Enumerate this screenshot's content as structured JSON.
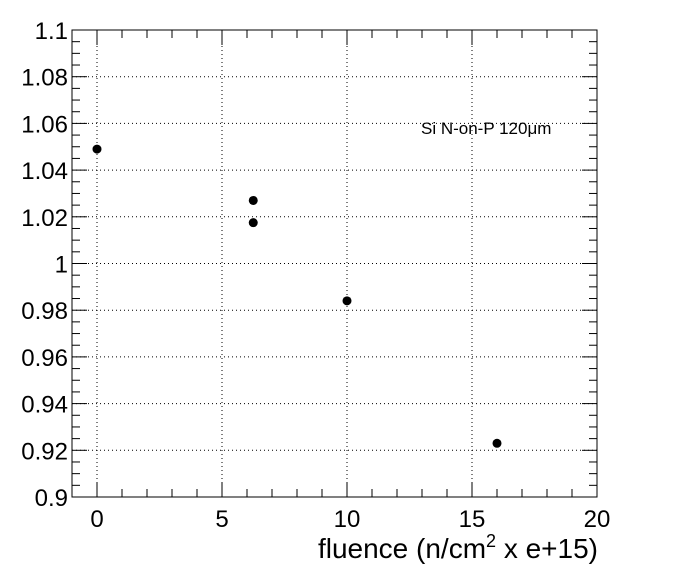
{
  "chart_data": {
    "type": "scatter",
    "title": "",
    "xlabel_main": "fluence (n/cm",
    "xlabel_sup": "2",
    "xlabel_rest": " x e+15)",
    "ylabel": "",
    "xlim": [
      -1,
      20
    ],
    "ylim": [
      0.9,
      1.1
    ],
    "grid": true,
    "x_ticks": [
      0,
      5,
      10,
      15,
      20
    ],
    "y_ticks": [
      0.9,
      0.92,
      0.94,
      0.96,
      0.98,
      1,
      1.02,
      1.04,
      1.06,
      1.08,
      1.1
    ],
    "x_tick_labels": [
      "0",
      "5",
      "10",
      "15",
      "20"
    ],
    "y_tick_labels": [
      "0.9",
      "0.92",
      "0.94",
      "0.96",
      "0.98",
      "1",
      "1.02",
      "1.04",
      "1.06",
      "1.08",
      "1.1"
    ],
    "annotation": "Si N-on-P 120μm",
    "marker_color": "#000000",
    "points": [
      {
        "x": 0,
        "y": 1.049
      },
      {
        "x": 6.25,
        "y": 1.027
      },
      {
        "x": 6.25,
        "y": 1.0175
      },
      {
        "x": 10,
        "y": 0.984
      },
      {
        "x": 16,
        "y": 0.923
      }
    ]
  }
}
